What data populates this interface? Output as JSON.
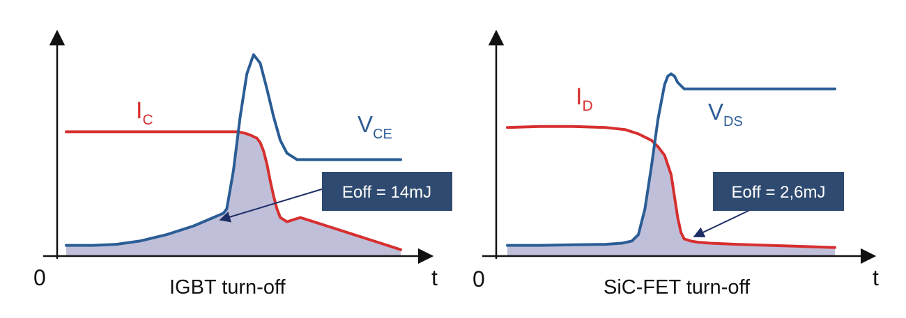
{
  "colors": {
    "current": "#d62f2f",
    "voltage": "#2b5d95",
    "fill": "#b9b8d6",
    "box": "#2f4a70",
    "box_text": "#ffffff",
    "axis": "#111111",
    "arrow": "#1f2f66"
  },
  "chart_data": [
    {
      "type": "line",
      "title": "IGBT turn-off",
      "origin_label": "0",
      "xlabel": "t",
      "ylabel": "",
      "grid": false,
      "xlim": [
        0,
        100
      ],
      "ylim": [
        0,
        100
      ],
      "annotation": "Eoff = 14mJ",
      "series": [
        {
          "name": "IC",
          "main": "I",
          "sub": "C",
          "color_key": "current",
          "x": [
            0,
            10,
            20,
            30,
            40,
            45,
            48,
            51,
            53,
            55,
            57,
            58,
            59,
            60,
            61,
            62,
            63,
            64,
            66,
            68,
            70,
            74,
            78,
            82,
            86,
            90,
            94,
            100
          ],
          "y": [
            58,
            58,
            58,
            58,
            58,
            58,
            58,
            58,
            57.5,
            56.5,
            55,
            53,
            49,
            43,
            35,
            28,
            22,
            18,
            16,
            17,
            18,
            16,
            14,
            12,
            10,
            8,
            6,
            3
          ]
        },
        {
          "name": "VCE",
          "main": "V",
          "sub": "CE",
          "color_key": "voltage",
          "x": [
            0,
            8,
            15,
            22,
            30,
            38,
            44,
            47,
            48,
            50,
            52,
            54,
            56,
            58,
            60,
            62,
            64,
            66,
            68,
            69,
            72,
            80,
            90,
            100
          ],
          "y": [
            5,
            5,
            5.5,
            7,
            10,
            14,
            18,
            20,
            22,
            40,
            65,
            85,
            94,
            90,
            78,
            65,
            54,
            48,
            46,
            45,
            45,
            45,
            45,
            45
          ]
        }
      ]
    },
    {
      "type": "line",
      "title": "SiC-FET turn-off",
      "origin_label": "0",
      "xlabel": "t",
      "ylabel": "",
      "grid": false,
      "xlim": [
        0,
        100
      ],
      "ylim": [
        0,
        100
      ],
      "annotation": "Eoff = 2,6mJ",
      "series": [
        {
          "name": "ID",
          "main": "I",
          "sub": "D",
          "color_key": "current",
          "x": [
            0,
            10,
            20,
            30,
            36,
            40,
            44,
            46,
            48,
            50,
            51,
            52,
            53,
            54,
            55,
            56,
            58,
            62,
            70,
            80,
            90,
            100
          ],
          "y": [
            60,
            60.5,
            60.5,
            60,
            59,
            57,
            54,
            51,
            47,
            38,
            28,
            18,
            11,
            8,
            7.5,
            7,
            6.5,
            6,
            5.5,
            5,
            4.5,
            4
          ]
        },
        {
          "name": "VDS",
          "main": "V",
          "sub": "DS",
          "color_key": "voltage",
          "x": [
            0,
            10,
            20,
            30,
            35,
            38,
            40,
            42,
            44,
            46,
            48,
            49,
            50,
            51,
            52,
            54,
            56,
            60,
            70,
            80,
            90,
            100
          ],
          "y": [
            5,
            5,
            5.3,
            5.5,
            6,
            7,
            10,
            22,
            42,
            64,
            80,
            84,
            85,
            84,
            81,
            78,
            78,
            78,
            78,
            78,
            78,
            78
          ]
        }
      ]
    }
  ]
}
